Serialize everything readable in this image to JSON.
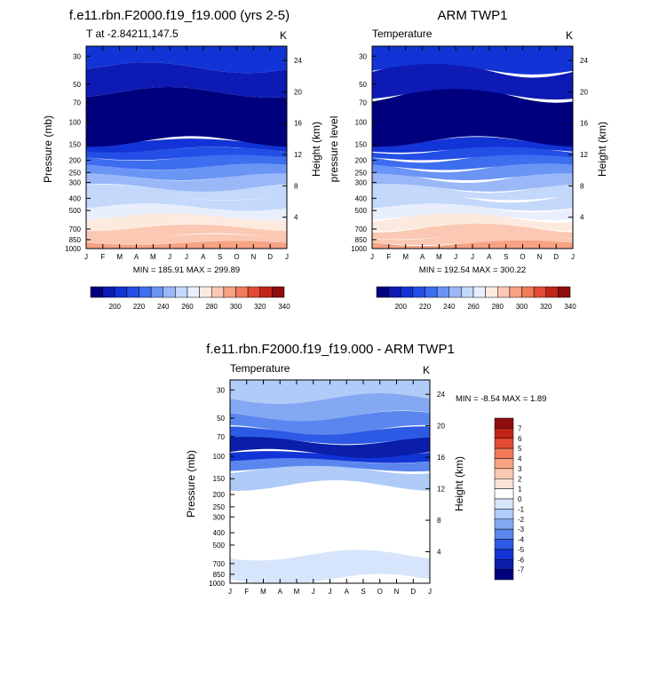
{
  "panels": [
    {
      "title": "f.e11.rbn.F2000.f19_f19.000 (yrs 2-5)",
      "left_label": "T at -2.84211,147.5",
      "right_label": "K",
      "ylabel_left": "Pressure (mb)",
      "ylabel_right": "Height (km)",
      "stats": "MIN = 185.91  MAX = 299.89"
    },
    {
      "title": "ARM TWP1",
      "left_label": "Temperature",
      "right_label": "K",
      "ylabel_left": "pressure level",
      "ylabel_right": "Height (km)",
      "stats": "MIN = 192.54  MAX = 300.22"
    },
    {
      "title": "f.e11.rbn.F2000.f19_f19.000 - ARM TWP1",
      "left_label": "Temperature",
      "right_label": "K",
      "ylabel_left": "Pressure (mb)",
      "ylabel_right": "Height (km)",
      "stats": "MIN = -8.54  MAX =   1.89"
    }
  ],
  "chart_data": [
    {
      "type": "heatmap",
      "title": "f.e11.rbn.F2000.f19_f19.000 (yrs 2-5)",
      "xlabel": "",
      "ylabel": "Pressure (mb)",
      "x_ticks": [
        "J",
        "F",
        "M",
        "A",
        "M",
        "J",
        "J",
        "A",
        "S",
        "O",
        "N",
        "D",
        "J"
      ],
      "y_ticks": [
        "30",
        "50",
        "70",
        "100",
        "150",
        "200",
        "250",
        "300",
        "400",
        "500",
        "700",
        "850",
        "1000"
      ],
      "height_ticks_km": [
        "24",
        "20",
        "16",
        "12",
        "8",
        "4"
      ],
      "levels": [
        190,
        200,
        210,
        220,
        230,
        240,
        250,
        260,
        270,
        280,
        290,
        300
      ],
      "colorbar_labels": [
        "200",
        "220",
        "240",
        "260",
        "280",
        "300",
        "320",
        "340"
      ],
      "min": 185.91,
      "max": 299.89,
      "bands_mb": [
        {
          "from": 1000,
          "to": 900,
          "value": 296
        },
        {
          "from": 900,
          "to": 800,
          "value": 292
        },
        {
          "from": 800,
          "to": 680,
          "value": 285
        },
        {
          "from": 680,
          "to": 560,
          "value": 278
        },
        {
          "from": 560,
          "to": 470,
          "value": 272
        },
        {
          "from": 470,
          "to": 390,
          "value": 262
        },
        {
          "from": 390,
          "to": 330,
          "value": 255
        },
        {
          "from": 330,
          "to": 270,
          "value": 245
        },
        {
          "from": 270,
          "to": 225,
          "value": 236
        },
        {
          "from": 225,
          "to": 190,
          "value": 226
        },
        {
          "from": 190,
          "to": 165,
          "value": 216
        },
        {
          "from": 165,
          "to": 142,
          "value": 206
        },
        {
          "from": 142,
          "to": 58,
          "value": 194
        },
        {
          "from": 58,
          "to": 37,
          "value": 204
        },
        {
          "from": 37,
          "to": 25,
          "value": 214
        }
      ]
    },
    {
      "type": "heatmap",
      "title": "ARM TWP1",
      "xlabel": "",
      "ylabel": "pressure level",
      "x_ticks": [
        "J",
        "F",
        "M",
        "A",
        "M",
        "J",
        "J",
        "A",
        "S",
        "O",
        "N",
        "D",
        "J"
      ],
      "y_ticks": [
        "30",
        "50",
        "70",
        "100",
        "150",
        "200",
        "250",
        "300",
        "400",
        "500",
        "700",
        "850",
        "1000"
      ],
      "height_ticks_km": [
        "24",
        "20",
        "16",
        "12",
        "8",
        "4"
      ],
      "levels": [
        190,
        200,
        210,
        220,
        230,
        240,
        250,
        260,
        270,
        280,
        290,
        300
      ],
      "colorbar_labels": [
        "200",
        "220",
        "240",
        "260",
        "280",
        "300",
        "320",
        "340"
      ],
      "min": 192.54,
      "max": 300.22,
      "bands_mb": [
        {
          "from": 1000,
          "to": 900,
          "value": 296
        },
        {
          "from": 900,
          "to": 800,
          "value": 292
        },
        {
          "from": 800,
          "to": 680,
          "value": 285
        },
        {
          "from": 680,
          "to": 560,
          "value": 278
        },
        {
          "from": 560,
          "to": 470,
          "value": 272
        },
        {
          "from": 470,
          "to": 390,
          "value": 262
        },
        {
          "from": 390,
          "to": 330,
          "value": 255
        },
        {
          "from": 330,
          "to": 270,
          "value": 245
        },
        {
          "from": 270,
          "to": 225,
          "value": 236
        },
        {
          "from": 225,
          "to": 190,
          "value": 226
        },
        {
          "from": 190,
          "to": 165,
          "value": 216
        },
        {
          "from": 165,
          "to": 142,
          "value": 206
        },
        {
          "from": 142,
          "to": 60,
          "value": 194
        },
        {
          "from": 60,
          "to": 38,
          "value": 204
        },
        {
          "from": 38,
          "to": 25,
          "value": 214
        }
      ]
    },
    {
      "type": "heatmap",
      "title": "f.e11.rbn.F2000.f19_f19.000 - ARM TWP1",
      "xlabel": "",
      "ylabel": "Pressure (mb)",
      "x_ticks": [
        "J",
        "F",
        "M",
        "A",
        "M",
        "J",
        "J",
        "A",
        "S",
        "O",
        "N",
        "D",
        "J"
      ],
      "y_ticks": [
        "30",
        "50",
        "70",
        "100",
        "150",
        "200",
        "250",
        "300",
        "400",
        "500",
        "700",
        "850",
        "1000"
      ],
      "height_ticks_km": [
        "24",
        "20",
        "16",
        "12",
        "8",
        "4"
      ],
      "levels": [
        -7,
        -6,
        -5,
        -4,
        -3,
        -2,
        -1,
        0,
        1,
        2,
        3,
        4,
        5,
        6,
        7
      ],
      "colorbar_labels": [
        "7",
        "6",
        "5",
        "4",
        "3",
        "2",
        "1",
        "0",
        "-1",
        "-2",
        "-3",
        "-4",
        "-5",
        "-6",
        "-7"
      ],
      "min": -8.54,
      "max": 1.89,
      "bands_mb": [
        {
          "from": 1000,
          "to": 930,
          "value": 0.5
        },
        {
          "from": 930,
          "to": 600,
          "value": -0.5
        },
        {
          "from": 600,
          "to": 170,
          "value": 0.5
        },
        {
          "from": 170,
          "to": 125,
          "value": -1.5
        },
        {
          "from": 125,
          "to": 108,
          "value": -3.5
        },
        {
          "from": 108,
          "to": 95,
          "value": -5.5
        },
        {
          "from": 95,
          "to": 75,
          "value": -6.5
        },
        {
          "from": 75,
          "to": 62,
          "value": -5
        },
        {
          "from": 62,
          "to": 48,
          "value": -3.5
        },
        {
          "from": 48,
          "to": 35,
          "value": -2.5
        },
        {
          "from": 35,
          "to": 25,
          "value": -1.5
        }
      ]
    }
  ],
  "colors": {
    "temperature_scale": [
      "#00007f",
      "#0d1ab3",
      "#1234d6",
      "#244fe6",
      "#3d6ef0",
      "#6a95f5",
      "#9ab8f8",
      "#c4d8fb",
      "#e8eefb",
      "#fdeadf",
      "#fbc8b3",
      "#f7a283",
      "#f17a5a",
      "#e24a33",
      "#c12418",
      "#8d0d0c"
    ],
    "difference_scale": [
      "#8d0d0c",
      "#c12418",
      "#e24a33",
      "#f17a5a",
      "#f7a283",
      "#fbc8b3",
      "#fde3d7",
      "#ffffff",
      "#d6e5fb",
      "#b0cbf8",
      "#85a8f3",
      "#5a86ee",
      "#2d5ae4",
      "#1234d6",
      "#0a1ea9",
      "#00007f"
    ]
  }
}
